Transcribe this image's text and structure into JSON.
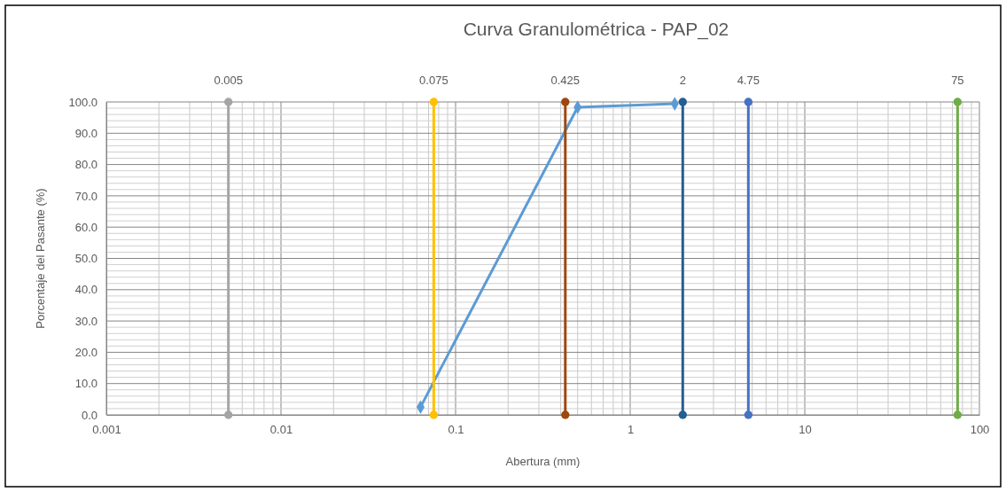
{
  "chart_data": {
    "type": "line",
    "title": "Curva Granulométrica - PAP_02",
    "xlabel": "Abertura (mm)",
    "ylabel": "Porcentaje del Pasante (%)",
    "log": "x",
    "xlim": [
      0.001,
      100
    ],
    "xticks": [
      0.001,
      0.01,
      0.1,
      1,
      10,
      100
    ],
    "ylim": [
      0,
      100
    ],
    "yticks": [
      {
        "value": 0,
        "label": "0.0"
      },
      {
        "value": 10,
        "label": "10.0"
      },
      {
        "value": 20,
        "label": "20.0"
      },
      {
        "value": 30,
        "label": "30.0"
      },
      {
        "value": 40,
        "label": "40.0"
      },
      {
        "value": 50,
        "label": "50.0"
      },
      {
        "value": 60,
        "label": "60.0"
      },
      {
        "value": 70,
        "label": "70.0"
      },
      {
        "value": 80,
        "label": "80.0"
      },
      {
        "value": 90,
        "label": "90.0"
      },
      {
        "value": 100,
        "label": "100.0"
      }
    ],
    "grid": true,
    "marker": "diamond",
    "series": [
      {
        "color": "#5b9bd5",
        "x": [
          0.063,
          0.5,
          1.8
        ],
        "values": [
          2.5,
          98.3,
          99.4
        ]
      },
      {
        "name": "0.005",
        "color": "#a5a5a5",
        "marker": "circle",
        "x": [
          0.005,
          0.005
        ],
        "values": [
          0,
          100
        ]
      },
      {
        "name": "0.075",
        "color": "#ffc000",
        "marker": "circle",
        "x": [
          0.075,
          0.075
        ],
        "values": [
          0,
          100
        ]
      },
      {
        "name": "0.425",
        "color": "#9e480e",
        "marker": "circle",
        "x": [
          0.425,
          0.425
        ],
        "values": [
          0,
          100
        ]
      },
      {
        "name": "2",
        "color": "#255e91",
        "marker": "circle",
        "x": [
          2,
          2
        ],
        "values": [
          0,
          100
        ]
      },
      {
        "name": "4.75",
        "color": "#4472c4",
        "marker": "circle",
        "x": [
          4.75,
          4.75
        ],
        "values": [
          0,
          100
        ]
      },
      {
        "name": "75",
        "color": "#70ad47",
        "marker": "circle",
        "x": [
          75,
          75
        ],
        "values": [
          0,
          100
        ]
      }
    ]
  }
}
